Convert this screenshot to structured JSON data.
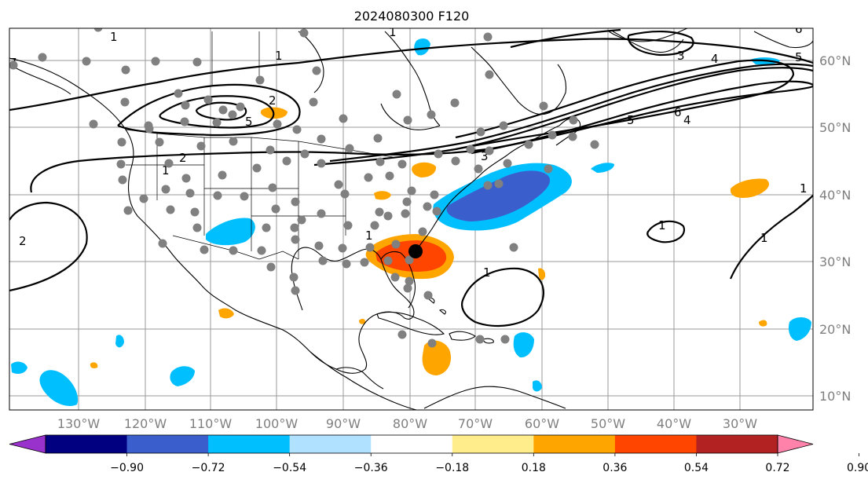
{
  "title": "2024080300 F120",
  "lat_labels": [
    "60°N",
    "50°N",
    "40°N",
    "30°N",
    "20°N",
    "10°N"
  ],
  "lon_labels": [
    "130°W",
    "120°W",
    "110°W",
    "100°W",
    "90°W",
    "80°W",
    "70°W",
    "60°W",
    "50°W",
    "40°W",
    "30°W"
  ],
  "colorbar": {
    "ticks": [
      "−0.90",
      "−0.72",
      "−0.54",
      "−0.36",
      "−0.18",
      "0.18",
      "0.36",
      "0.54",
      "0.72",
      "0.90"
    ],
    "colors": [
      "#9932cc",
      "#000080",
      "#3a5fcd",
      "#00bfff",
      "#b0e2ff",
      "#ffffff",
      "#ffec8b",
      "#ffa500",
      "#ff4500",
      "#b22222",
      "#ff82ab"
    ]
  },
  "contour_labels": [
    "1",
    "1",
    "2",
    "5",
    "2",
    "1",
    "1",
    "2",
    "3",
    "4",
    "5",
    "6",
    "3",
    "4",
    "5",
    "6",
    "1",
    "1",
    "1",
    "1",
    "1",
    "7"
  ],
  "colors": {
    "gray_dot": "#808080",
    "storm_center": "#000000",
    "grid": "#9a9a9a"
  }
}
